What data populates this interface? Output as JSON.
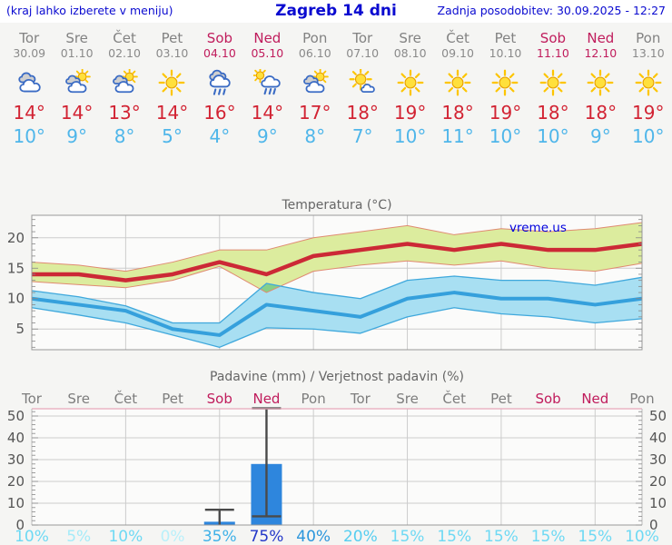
{
  "header": {
    "left_note": "(kraj lahko izberete v meniju)",
    "title": "Zagreb 14 dni",
    "updated": "Zadnja posodobitev: 30.09.2025 - 12:27"
  },
  "days": [
    {
      "name": "Tor",
      "date": "30.09",
      "icon": "cloudy",
      "high": "14°",
      "low": "10°",
      "weekend": false
    },
    {
      "name": "Sre",
      "date": "01.10",
      "icon": "partly",
      "high": "14°",
      "low": "9°",
      "weekend": false
    },
    {
      "name": "Čet",
      "date": "02.10",
      "icon": "partly",
      "high": "13°",
      "low": "8°",
      "weekend": false
    },
    {
      "name": "Pet",
      "date": "03.10",
      "icon": "sun",
      "high": "14°",
      "low": "5°",
      "weekend": false
    },
    {
      "name": "Sob",
      "date": "04.10",
      "icon": "rain",
      "high": "16°",
      "low": "4°",
      "weekend": true
    },
    {
      "name": "Ned",
      "date": "05.10",
      "icon": "sunrain",
      "high": "14°",
      "low": "9°",
      "weekend": true
    },
    {
      "name": "Pon",
      "date": "06.10",
      "icon": "partly",
      "high": "17°",
      "low": "8°",
      "weekend": false
    },
    {
      "name": "Tor",
      "date": "07.10",
      "icon": "mostlysunny",
      "high": "18°",
      "low": "7°",
      "weekend": false
    },
    {
      "name": "Sre",
      "date": "08.10",
      "icon": "sun",
      "high": "19°",
      "low": "10°",
      "weekend": false
    },
    {
      "name": "Čet",
      "date": "09.10",
      "icon": "sun",
      "high": "18°",
      "low": "11°",
      "weekend": false
    },
    {
      "name": "Pet",
      "date": "10.10",
      "icon": "sun",
      "high": "19°",
      "low": "10°",
      "weekend": false
    },
    {
      "name": "Sob",
      "date": "11.10",
      "icon": "sun",
      "high": "18°",
      "low": "10°",
      "weekend": true
    },
    {
      "name": "Ned",
      "date": "12.10",
      "icon": "sun",
      "high": "18°",
      "low": "9°",
      "weekend": true
    },
    {
      "name": "Pon",
      "date": "13.10",
      "icon": "sun",
      "high": "19°",
      "low": "10°",
      "weekend": false
    }
  ],
  "chart_data": [
    {
      "type": "line",
      "title": "Temperatura (°C)",
      "watermark": "vreme.us",
      "x_labels": [
        "Tor",
        "Sre",
        "Čet",
        "Pet",
        "Sob",
        "Ned",
        "Pon",
        "Tor",
        "Sre",
        "Čet",
        "Pet",
        "Sob",
        "Ned",
        "Pon"
      ],
      "ylim": [
        1.6,
        23.7
      ],
      "yticks": [
        5,
        10,
        15,
        20
      ],
      "grid": true,
      "series": [
        {
          "name": "max_temp",
          "values": [
            14,
            14,
            13,
            14,
            16,
            14,
            17,
            18,
            19,
            18,
            19,
            18,
            18,
            19
          ]
        },
        {
          "name": "max_range_upper",
          "values": [
            16,
            15.5,
            14.5,
            16,
            18,
            18,
            20,
            21,
            22,
            20.5,
            21.5,
            21,
            21.5,
            22.5
          ]
        },
        {
          "name": "max_range_lower",
          "values": [
            12.8,
            12.3,
            11.8,
            13,
            15.3,
            11,
            14.5,
            15.5,
            16.2,
            15.5,
            16.2,
            15,
            14.5,
            15.8
          ]
        },
        {
          "name": "min_temp",
          "values": [
            10,
            9,
            8,
            5,
            4,
            9,
            8,
            7,
            10,
            11,
            10,
            10,
            9,
            10
          ]
        },
        {
          "name": "min_range_upper",
          "values": [
            11.3,
            10.3,
            8.8,
            6,
            6,
            12.5,
            11,
            10,
            13,
            13.7,
            13,
            13,
            12.2,
            13.5
          ]
        },
        {
          "name": "min_range_lower",
          "values": [
            8.5,
            7.3,
            6,
            4,
            2,
            5.2,
            5,
            4.3,
            7,
            8.5,
            7.5,
            7,
            6,
            6.7
          ]
        }
      ]
    },
    {
      "type": "bar",
      "title": "Padavine (mm) / Verjetnost padavin (%)",
      "categories": [
        "Tor",
        "Sre",
        "Čet",
        "Pet",
        "Sob",
        "Ned",
        "Pon",
        "Tor",
        "Sre",
        "Čet",
        "Pet",
        "Sob",
        "Ned",
        "Pon"
      ],
      "weekend_indices": [
        4,
        5,
        11,
        12
      ],
      "ylim": [
        0,
        53.3
      ],
      "yticks": [
        0,
        10,
        20,
        30,
        40,
        50
      ],
      "grid": true,
      "values": [
        0,
        0,
        0,
        0,
        1.5,
        28,
        0,
        0,
        0,
        0,
        0,
        0,
        0,
        0
      ],
      "bars": [
        {
          "index": 4,
          "value": 1.5,
          "range": [
            0,
            7
          ]
        },
        {
          "index": 5,
          "value": 28,
          "range": [
            4,
            53.5
          ]
        }
      ],
      "probabilities": [
        {
          "label": "10%",
          "color": "#6ed9f3"
        },
        {
          "label": "5%",
          "color": "#a5ebf8"
        },
        {
          "label": "10%",
          "color": "#6ed9f3"
        },
        {
          "label": "0%",
          "color": "#b9f0fa"
        },
        {
          "label": "35%",
          "color": "#3fb1e8"
        },
        {
          "label": "75%",
          "color": "#2438c9"
        },
        {
          "label": "40%",
          "color": "#2b96dc"
        },
        {
          "label": "20%",
          "color": "#55cef0"
        },
        {
          "label": "15%",
          "color": "#6ed9f3"
        },
        {
          "label": "15%",
          "color": "#6ed9f3"
        },
        {
          "label": "15%",
          "color": "#6ed9f3"
        },
        {
          "label": "15%",
          "color": "#6ed9f3"
        },
        {
          "label": "15%",
          "color": "#6ed9f3"
        },
        {
          "label": "10%",
          "color": "#6ed9f3"
        }
      ]
    }
  ],
  "colors": {
    "header_blue": "#0a0ad0",
    "day_gray": "#828282",
    "weekend": "#c01c5c",
    "temp_high": "#d22333",
    "temp_low": "#4fb6ea",
    "title_gray": "#666666",
    "axis_label": "#555555",
    "grid": "#cccccc",
    "frame": "#999999",
    "tick": "#888888",
    "plot_bg": "#fbfbfa",
    "page_bg": "#f5f5f3",
    "line_max": "#cc2936",
    "band_max": "#dcec9e",
    "band_max_edge": "#e08a72",
    "line_min": "#35a0dc",
    "band_min": "#a8dff2",
    "band_min_edge": "#3fa8dc",
    "overlap_green": "#85d089",
    "bar_blue": "#2e86dd",
    "whisker": "#4a4a4a",
    "precip_top_border": "#e8a8ba",
    "watermark_blue": "#0000dd"
  },
  "icon_names": [
    "cloudy-icon",
    "partly-sunny-icon",
    "sunny-icon",
    "rain-icon",
    "sun-rain-icon",
    "mostly-sunny-icon"
  ]
}
